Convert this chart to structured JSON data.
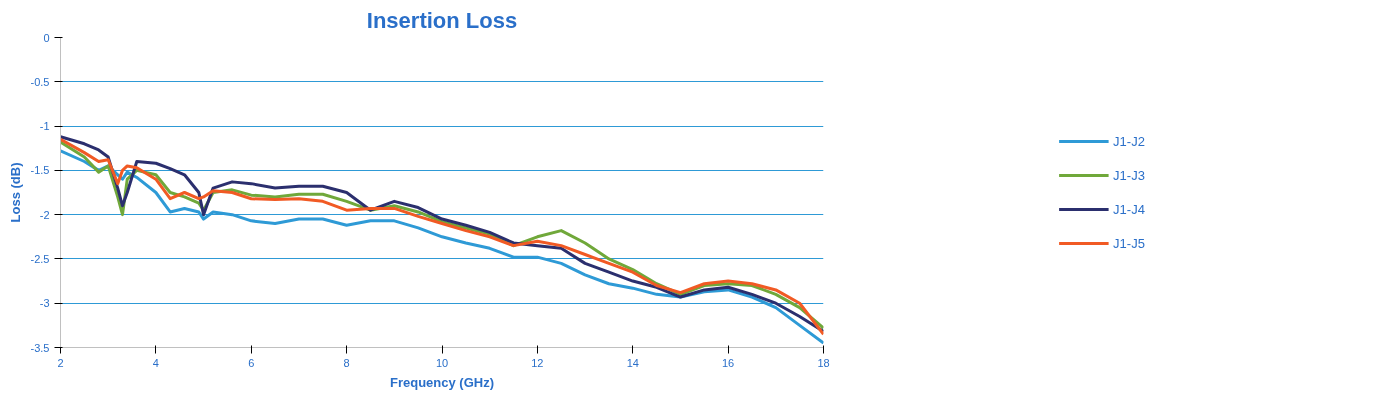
{
  "chart_data": {
    "type": "line",
    "title": "Insertion Loss",
    "xlabel": "Frequency (GHz)",
    "ylabel": "Loss (dB)",
    "x": [
      2,
      2.5,
      2.8,
      3.0,
      3.2,
      3.3,
      3.4,
      3.6,
      4,
      4.3,
      4.6,
      4.9,
      5.0,
      5.2,
      5.6,
      6,
      6.5,
      7,
      7.5,
      8,
      8.5,
      9,
      9.5,
      10,
      10.5,
      11,
      11.5,
      12,
      12.5,
      13,
      13.5,
      14,
      14.5,
      15,
      15.5,
      16,
      16.5,
      17,
      17.5,
      18
    ],
    "series": [
      {
        "name": "J1-J2",
        "color": "#2e9ad6",
        "values": [
          -1.28,
          -1.4,
          -1.5,
          -1.45,
          -1.55,
          -1.6,
          -1.52,
          -1.58,
          -1.75,
          -1.97,
          -1.93,
          -1.97,
          -2.05,
          -1.97,
          -2.0,
          -2.07,
          -2.1,
          -2.05,
          -2.05,
          -2.12,
          -2.07,
          -2.07,
          -2.15,
          -2.25,
          -2.32,
          -2.38,
          -2.48,
          -2.48,
          -2.55,
          -2.68,
          -2.78,
          -2.83,
          -2.9,
          -2.93,
          -2.87,
          -2.85,
          -2.93,
          -3.05,
          -3.25,
          -3.45
        ]
      },
      {
        "name": "J1-J3",
        "color": "#70a83a",
        "values": [
          -1.18,
          -1.35,
          -1.52,
          -1.45,
          -1.8,
          -2.0,
          -1.6,
          -1.5,
          -1.55,
          -1.75,
          -1.8,
          -1.87,
          -1.95,
          -1.75,
          -1.72,
          -1.78,
          -1.8,
          -1.77,
          -1.77,
          -1.85,
          -1.95,
          -1.9,
          -1.97,
          -2.08,
          -2.15,
          -2.22,
          -2.35,
          -2.25,
          -2.18,
          -2.32,
          -2.5,
          -2.62,
          -2.78,
          -2.9,
          -2.8,
          -2.78,
          -2.8,
          -2.9,
          -3.05,
          -3.28
        ]
      },
      {
        "name": "J1-J4",
        "color": "#2b2f6e",
        "values": [
          -1.12,
          -1.2,
          -1.27,
          -1.35,
          -1.7,
          -1.9,
          -1.75,
          -1.4,
          -1.42,
          -1.48,
          -1.55,
          -1.75,
          -2.0,
          -1.7,
          -1.63,
          -1.65,
          -1.7,
          -1.68,
          -1.68,
          -1.75,
          -1.95,
          -1.85,
          -1.92,
          -2.05,
          -2.12,
          -2.2,
          -2.32,
          -2.35,
          -2.38,
          -2.55,
          -2.65,
          -2.75,
          -2.82,
          -2.93,
          -2.85,
          -2.82,
          -2.9,
          -3.0,
          -3.15,
          -3.32
        ]
      },
      {
        "name": "J1-J5",
        "color": "#f15a24",
        "values": [
          -1.15,
          -1.3,
          -1.4,
          -1.38,
          -1.65,
          -1.5,
          -1.45,
          -1.47,
          -1.6,
          -1.82,
          -1.75,
          -1.82,
          -1.8,
          -1.73,
          -1.75,
          -1.82,
          -1.83,
          -1.82,
          -1.85,
          -1.95,
          -1.93,
          -1.93,
          -2.02,
          -2.1,
          -2.18,
          -2.25,
          -2.35,
          -2.3,
          -2.35,
          -2.45,
          -2.55,
          -2.65,
          -2.8,
          -2.88,
          -2.78,
          -2.75,
          -2.78,
          -2.85,
          -3.0,
          -3.35
        ]
      }
    ],
    "xlim": [
      2,
      18
    ],
    "xticks": [
      2,
      4,
      6,
      8,
      10,
      12,
      14,
      16,
      18
    ],
    "ylim": [
      -3.5,
      0
    ],
    "yticks": [
      0,
      -0.5,
      -1,
      -1.5,
      -2,
      -2.5,
      -3,
      -3.5
    ],
    "grid": "y",
    "legend": "right",
    "marker": "none",
    "line_style": "solid"
  }
}
